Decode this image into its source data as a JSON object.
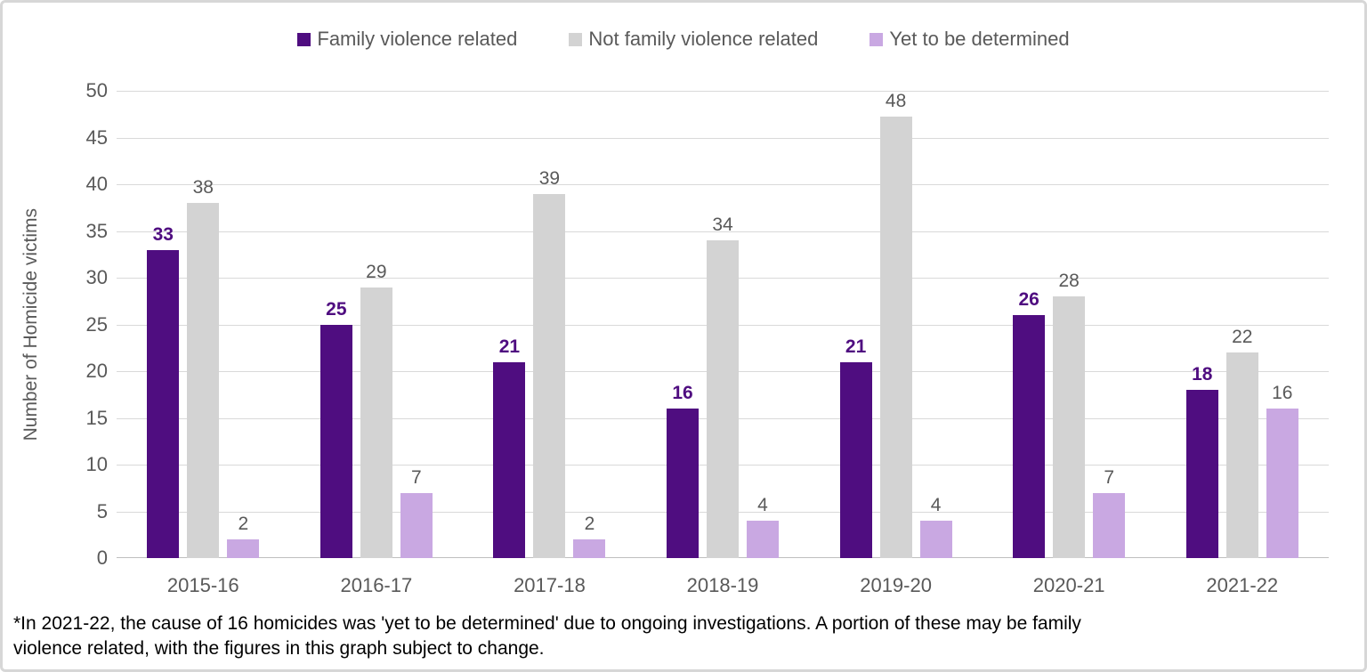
{
  "chart_data": {
    "type": "bar",
    "categories": [
      "2015-16",
      "2016-17",
      "2017-18",
      "2018-19",
      "2019-20",
      "2020-21",
      "2021-22"
    ],
    "series": [
      {
        "name": "Family violence related",
        "color": "#4f0d80",
        "label_color": "#4f0d80",
        "label_bold": true,
        "values": [
          33,
          25,
          21,
          16,
          21,
          26,
          18
        ]
      },
      {
        "name": "Not family violence related",
        "color": "#d3d3d3",
        "label_color": "#595959",
        "label_bold": false,
        "values": [
          38,
          29,
          39,
          34,
          48,
          28,
          22
        ]
      },
      {
        "name": "Yet to be determined",
        "color": "#c9a8e2",
        "label_color": "#595959",
        "label_bold": false,
        "values": [
          2,
          7,
          2,
          4,
          4,
          7,
          16
        ]
      }
    ],
    "title": "",
    "xlabel": "",
    "ylabel": "Number of Homicide victims",
    "ylim": [
      0,
      50
    ],
    "ytick_step": 5,
    "grid": true,
    "legend_position": "top"
  },
  "footnote": {
    "text": "*In 2021-22, the cause of 16 homicides was 'yet to be determined' due to ongoing investigations.  A portion of these may be family violence related, with the figures in this graph subject to change."
  },
  "colors": {
    "axis_text": "#595959",
    "gridline": "#d9d9d9",
    "axis_line": "#bfbfbf",
    "frame_border": "#d7d7d7",
    "background": "#ffffff"
  }
}
